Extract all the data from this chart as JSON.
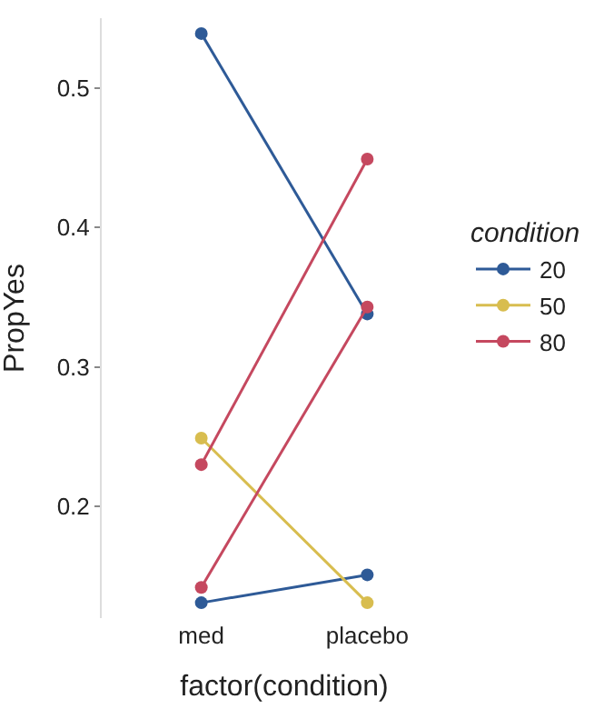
{
  "chart_data": {
    "type": "line",
    "xlabel": "factor(condition)",
    "ylabel": "PropYes",
    "legend_title": "condition",
    "categories": [
      "med",
      "placebo"
    ],
    "series": [
      {
        "name": "20",
        "color": "#2e5a97",
        "values": [
          0.539,
          0.338
        ]
      },
      {
        "color": "#2e5a97",
        "values": [
          0.131,
          0.151
        ]
      },
      {
        "name": "50",
        "color": "#d8bd4f",
        "values": [
          0.249,
          0.131
        ]
      },
      {
        "name": "80",
        "color": "#c5485f",
        "values": [
          0.23,
          0.449
        ]
      },
      {
        "color": "#c5485f",
        "values": [
          0.142,
          0.343
        ]
      }
    ],
    "ylim": [
      0.12,
      0.55
    ],
    "yticks": [
      0.2,
      0.3,
      0.4,
      0.5
    ],
    "marker": "circle",
    "legend": "right"
  }
}
